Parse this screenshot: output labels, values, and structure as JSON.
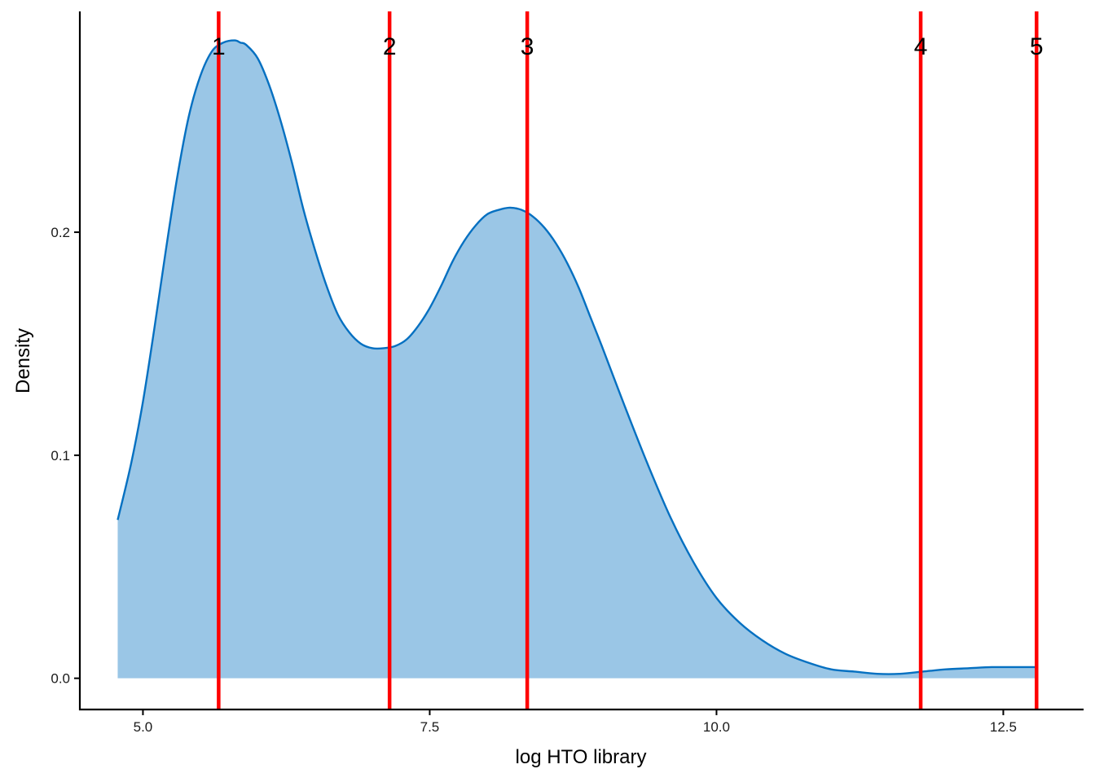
{
  "colors": {
    "fill": "#9ac6e6",
    "curve": "#0570c1",
    "vline": "#ff0000",
    "axis": "#000000"
  },
  "chart_data": {
    "type": "area",
    "xlabel": "log HTO library",
    "ylabel": "Density",
    "xlim": [
      4.45,
      13.2
    ],
    "ylim": [
      -0.014,
      0.299
    ],
    "x_ticks": [
      {
        "value": 5.0,
        "label": "5.0"
      },
      {
        "value": 7.5,
        "label": "7.5"
      },
      {
        "value": 10.0,
        "label": "10.0"
      },
      {
        "value": 12.5,
        "label": "12.5"
      }
    ],
    "y_ticks": [
      {
        "value": 0.0,
        "label": "0.0"
      },
      {
        "value": 0.1,
        "label": "0.1"
      },
      {
        "value": 0.2,
        "label": "0.2"
      }
    ],
    "grid": false,
    "legend": "none",
    "density": {
      "x": [
        4.78,
        4.9,
        5.0,
        5.1,
        5.2,
        5.3,
        5.4,
        5.5,
        5.6,
        5.7,
        5.8,
        5.85,
        5.9,
        6.0,
        6.1,
        6.2,
        6.3,
        6.4,
        6.5,
        6.6,
        6.7,
        6.8,
        6.9,
        7.0,
        7.1,
        7.2,
        7.3,
        7.4,
        7.5,
        7.6,
        7.7,
        7.8,
        7.9,
        8.0,
        8.1,
        8.2,
        8.3,
        8.4,
        8.5,
        8.6,
        8.7,
        8.8,
        8.9,
        9.0,
        9.2,
        9.4,
        9.6,
        9.8,
        10.0,
        10.2,
        10.4,
        10.6,
        10.8,
        11.0,
        11.2,
        11.4,
        11.6,
        11.8,
        12.0,
        12.2,
        12.4,
        12.6,
        12.79
      ],
      "y": [
        0.071,
        0.097,
        0.124,
        0.157,
        0.192,
        0.225,
        0.252,
        0.27,
        0.281,
        0.285,
        0.286,
        0.285,
        0.284,
        0.278,
        0.266,
        0.25,
        0.231,
        0.21,
        0.192,
        0.176,
        0.163,
        0.155,
        0.15,
        0.148,
        0.148,
        0.149,
        0.152,
        0.158,
        0.166,
        0.176,
        0.187,
        0.196,
        0.203,
        0.208,
        0.21,
        0.211,
        0.21,
        0.207,
        0.202,
        0.195,
        0.186,
        0.175,
        0.162,
        0.149,
        0.122,
        0.096,
        0.072,
        0.052,
        0.036,
        0.025,
        0.017,
        0.011,
        0.007,
        0.004,
        0.003,
        0.002,
        0.002,
        0.003,
        0.004,
        0.0045,
        0.005,
        0.005,
        0.005
      ]
    },
    "vlines": [
      {
        "label": "1",
        "x": 5.66
      },
      {
        "label": "2",
        "x": 7.15
      },
      {
        "label": "3",
        "x": 8.35
      },
      {
        "label": "4",
        "x": 11.78
      },
      {
        "label": "5",
        "x": 12.79
      }
    ]
  }
}
